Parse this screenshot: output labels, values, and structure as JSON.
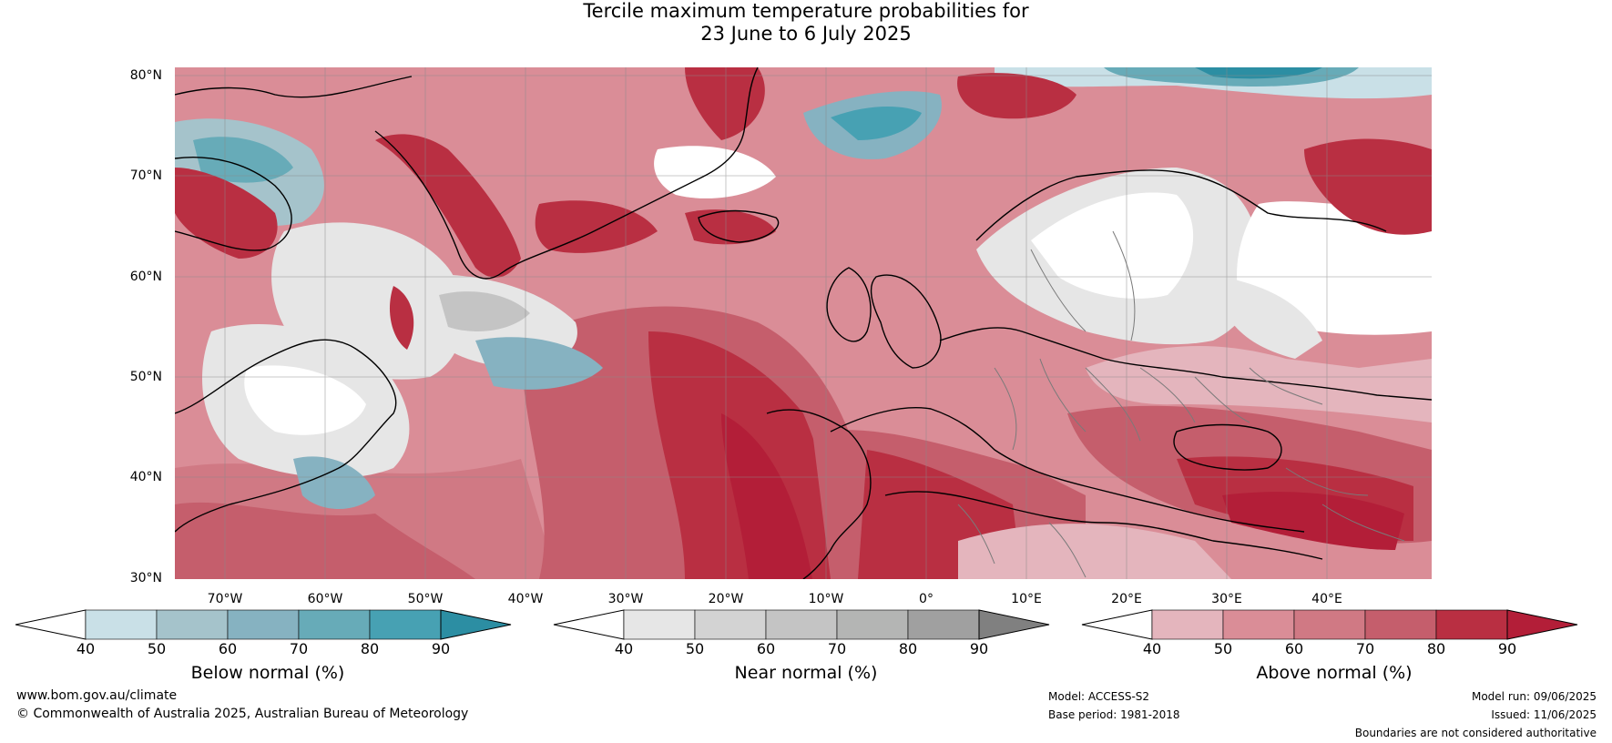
{
  "header": {
    "title_line1": "Tercile maximum temperature probabilities for",
    "title_line2": "23 June to 6 July 2025"
  },
  "map": {
    "latitude_labels": [
      "80°N",
      "70°N",
      "60°N",
      "50°N",
      "40°N",
      "30°N"
    ],
    "longitude_labels": [
      "70°W",
      "60°W",
      "50°W",
      "40°W",
      "30°W",
      "20°W",
      "10°W",
      "0°",
      "10°E",
      "20°E",
      "30°E",
      "40°E"
    ]
  },
  "legends": [
    {
      "label": "Below normal (%)",
      "ticks": [
        "40",
        "50",
        "60",
        "70",
        "80",
        "90"
      ],
      "colors": [
        "#ffffff",
        "#c9e0e7",
        "#a5c3cb",
        "#86b2c1",
        "#67abb8",
        "#47a1b3",
        "#2c8ea3"
      ]
    },
    {
      "label": "Near normal (%)",
      "ticks": [
        "40",
        "50",
        "60",
        "70",
        "80",
        "90"
      ],
      "colors": [
        "#ffffff",
        "#e6e6e6",
        "#d3d3d3",
        "#c4c4c4",
        "#b4b5b4",
        "#a0a0a0",
        "#808080"
      ]
    },
    {
      "label": "Above normal (%)",
      "ticks": [
        "40",
        "50",
        "60",
        "70",
        "80",
        "90"
      ],
      "colors": [
        "#ffffff",
        "#e4b5bd",
        "#da8d97",
        "#d07984",
        "#c55e6c",
        "#b92f42",
        "#b31e38"
      ]
    }
  ],
  "footer": {
    "website": "www.bom.gov.au/climate",
    "copyright": "© Commonwealth of Australia 2025, Australian Bureau of Meteorology",
    "model": "Model: ACCESS-S2",
    "base_period": "Base period: 1981-2018",
    "model_run": "Model run: 09/06/2025",
    "issued": "Issued: 11/06/2025",
    "disclaimer": "Boundaries are not considered authoritative"
  }
}
